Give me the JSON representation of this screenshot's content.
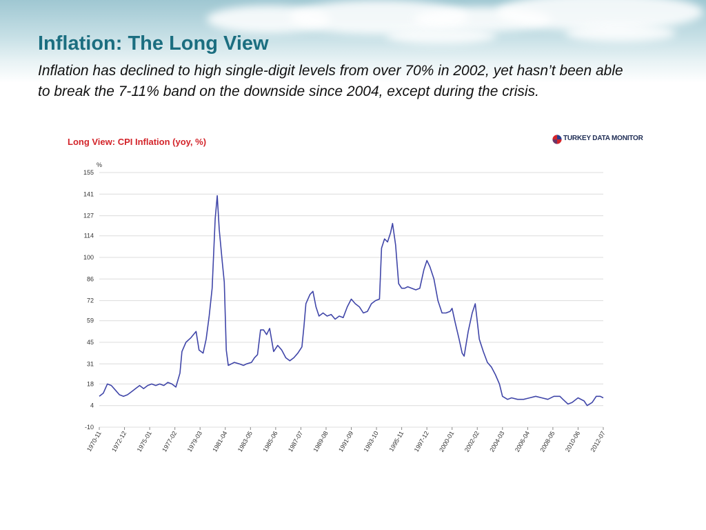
{
  "slide": {
    "title": "Inflation: The Long View",
    "subtitle": "Inflation has declined to high single-digit levels from over 70% in 2002, yet hasn’t been able to break the 7-11% band on the downside since 2004, except during the crisis."
  },
  "brand": {
    "text": "TURKEY DATA MONITOR",
    "logo": "globe-logo-icon"
  },
  "colors": {
    "line": "#3f45a8",
    "grid": "#dcdcdc",
    "title": "#1b6e80",
    "chart_title": "#d3242a"
  },
  "chart_data": {
    "type": "line",
    "title": "Long View: CPI Inflation (yoy, %)",
    "ylabel": "%",
    "ylim": [
      -10,
      155
    ],
    "yticks": [
      155,
      141,
      127,
      114,
      100,
      86,
      72,
      59,
      45,
      31,
      18,
      4,
      -10
    ],
    "xlim": [
      "1970-11",
      "2012-07"
    ],
    "xticks": [
      "1970-11",
      "1972-12",
      "1975-01",
      "1977-02",
      "1979-03",
      "1981-04",
      "1983-05",
      "1985-06",
      "1987-07",
      "1989-08",
      "1991-09",
      "1993-10",
      "1995-11",
      "1997-12",
      "2000-01",
      "2002-02",
      "2004-03",
      "2006-04",
      "2008-05",
      "2010-06",
      "2012-07"
    ],
    "grid": true,
    "legend": "none",
    "series": [
      {
        "values": [
          [
            "1970-11",
            10
          ],
          [
            "1971-03",
            12
          ],
          [
            "1971-07",
            18
          ],
          [
            "1971-11",
            17
          ],
          [
            "1972-03",
            14
          ],
          [
            "1972-07",
            11
          ],
          [
            "1972-11",
            10
          ],
          [
            "1973-03",
            11
          ],
          [
            "1973-07",
            13
          ],
          [
            "1973-11",
            15
          ],
          [
            "1974-03",
            17
          ],
          [
            "1974-07",
            15
          ],
          [
            "1974-11",
            17
          ],
          [
            "1975-03",
            18
          ],
          [
            "1975-07",
            17
          ],
          [
            "1975-11",
            18
          ],
          [
            "1976-03",
            17
          ],
          [
            "1976-07",
            19
          ],
          [
            "1976-11",
            18
          ],
          [
            "1977-03",
            16
          ],
          [
            "1977-07",
            25
          ],
          [
            "1977-09",
            39
          ],
          [
            "1978-01",
            45
          ],
          [
            "1978-06",
            48
          ],
          [
            "1978-11",
            52
          ],
          [
            "1979-02",
            40
          ],
          [
            "1979-06",
            38
          ],
          [
            "1979-09",
            47
          ],
          [
            "1979-12",
            62
          ],
          [
            "1980-03",
            80
          ],
          [
            "1980-06",
            125
          ],
          [
            "1980-08",
            140
          ],
          [
            "1980-10",
            118
          ],
          [
            "1981-01",
            97
          ],
          [
            "1981-03",
            84
          ],
          [
            "1981-05",
            40
          ],
          [
            "1981-07",
            30
          ],
          [
            "1981-10",
            31
          ],
          [
            "1982-01",
            32
          ],
          [
            "1982-06",
            31
          ],
          [
            "1982-10",
            30
          ],
          [
            "1983-01",
            31
          ],
          [
            "1983-06",
            32
          ],
          [
            "1983-09",
            35
          ],
          [
            "1983-12",
            37
          ],
          [
            "1984-03",
            53
          ],
          [
            "1984-06",
            53
          ],
          [
            "1984-09",
            50
          ],
          [
            "1984-12",
            54
          ],
          [
            "1985-04",
            39
          ],
          [
            "1985-08",
            43
          ],
          [
            "1985-12",
            40
          ],
          [
            "1986-04",
            35
          ],
          [
            "1986-08",
            33
          ],
          [
            "1986-12",
            35
          ],
          [
            "1987-04",
            38
          ],
          [
            "1987-08",
            42
          ],
          [
            "1987-10",
            55
          ],
          [
            "1987-12",
            70
          ],
          [
            "1988-04",
            76
          ],
          [
            "1988-07",
            78
          ],
          [
            "1988-10",
            68
          ],
          [
            "1989-01",
            62
          ],
          [
            "1989-05",
            64
          ],
          [
            "1989-09",
            62
          ],
          [
            "1990-01",
            63
          ],
          [
            "1990-05",
            60
          ],
          [
            "1990-09",
            62
          ],
          [
            "1991-01",
            61
          ],
          [
            "1991-05",
            68
          ],
          [
            "1991-09",
            73
          ],
          [
            "1992-01",
            70
          ],
          [
            "1992-05",
            68
          ],
          [
            "1992-09",
            64
          ],
          [
            "1993-01",
            65
          ],
          [
            "1993-05",
            70
          ],
          [
            "1993-09",
            72
          ],
          [
            "1994-01",
            73
          ],
          [
            "1994-03",
            106
          ],
          [
            "1994-06",
            112
          ],
          [
            "1994-09",
            110
          ],
          [
            "1994-12",
            116
          ],
          [
            "1995-02",
            122
          ],
          [
            "1995-05",
            108
          ],
          [
            "1995-08",
            83
          ],
          [
            "1995-11",
            80
          ],
          [
            "1996-02",
            80
          ],
          [
            "1996-05",
            81
          ],
          [
            "1996-09",
            80
          ],
          [
            "1997-01",
            79
          ],
          [
            "1997-05",
            80
          ],
          [
            "1997-09",
            92
          ],
          [
            "1997-12",
            98
          ],
          [
            "1998-03",
            94
          ],
          [
            "1998-07",
            86
          ],
          [
            "1998-11",
            72
          ],
          [
            "1999-03",
            64
          ],
          [
            "1999-07",
            64
          ],
          [
            "1999-11",
            65
          ],
          [
            "2000-01",
            67
          ],
          [
            "2000-04",
            58
          ],
          [
            "2000-08",
            47
          ],
          [
            "2000-11",
            38
          ],
          [
            "2001-01",
            36
          ],
          [
            "2001-05",
            52
          ],
          [
            "2001-09",
            64
          ],
          [
            "2001-12",
            70
          ],
          [
            "2002-04",
            47
          ],
          [
            "2002-08",
            39
          ],
          [
            "2002-12",
            32
          ],
          [
            "2003-04",
            29
          ],
          [
            "2003-08",
            24
          ],
          [
            "2003-12",
            18
          ],
          [
            "2004-03",
            10
          ],
          [
            "2004-08",
            8
          ],
          [
            "2004-12",
            9
          ],
          [
            "2005-06",
            8
          ],
          [
            "2005-12",
            8
          ],
          [
            "2006-06",
            9
          ],
          [
            "2006-12",
            10
          ],
          [
            "2007-06",
            9
          ],
          [
            "2007-12",
            8
          ],
          [
            "2008-06",
            10
          ],
          [
            "2008-12",
            10
          ],
          [
            "2009-03",
            8
          ],
          [
            "2009-08",
            5
          ],
          [
            "2009-12",
            6
          ],
          [
            "2010-06",
            9
          ],
          [
            "2010-12",
            7
          ],
          [
            "2011-03",
            4
          ],
          [
            "2011-08",
            6
          ],
          [
            "2011-12",
            10
          ],
          [
            "2012-04",
            10
          ],
          [
            "2012-07",
            9
          ]
        ]
      }
    ]
  }
}
